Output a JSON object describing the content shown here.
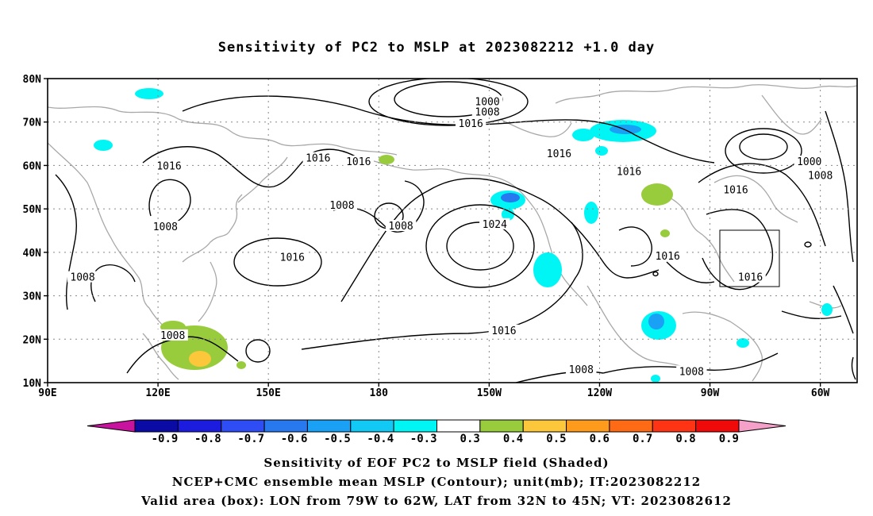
{
  "title": "Sensitivity of PC2 to MSLP at 2023082212 +1.0 day",
  "map": {
    "lat_labels": [
      "80N",
      "70N",
      "60N",
      "50N",
      "40N",
      "30N",
      "20N",
      "10N"
    ],
    "lon_labels": [
      "90E",
      "120E",
      "150E",
      "180",
      "150W",
      "120W",
      "90W",
      "60W"
    ],
    "contour_labels": [
      {
        "text": "1000",
        "lon": -150.5,
        "lat": 74.6
      },
      {
        "text": "1008",
        "lon": -150.5,
        "lat": 72.2
      },
      {
        "text": "1016",
        "lon": -155.0,
        "lat": 69.6
      },
      {
        "text": "1016",
        "lon": -131.0,
        "lat": 62.6
      },
      {
        "text": "1016",
        "lon": -112.0,
        "lat": 58.5
      },
      {
        "text": "1016",
        "lon": -83.0,
        "lat": 54.3
      },
      {
        "text": "1000",
        "lon": -63.0,
        "lat": 60.8
      },
      {
        "text": "1008",
        "lon": -60.0,
        "lat": 57.6
      },
      {
        "text": "1016",
        "lon": 123.0,
        "lat": 59.8
      },
      {
        "text": "1016",
        "lon": 163.5,
        "lat": 61.6
      },
      {
        "text": "1016",
        "lon": 174.5,
        "lat": 60.8
      },
      {
        "text": "1008",
        "lon": 122.0,
        "lat": 45.8
      },
      {
        "text": "1008",
        "lon": 170.0,
        "lat": 50.8
      },
      {
        "text": "1008",
        "lon": 186.0,
        "lat": 46.0
      },
      {
        "text": "1024",
        "lon": -148.5,
        "lat": 46.4
      },
      {
        "text": "1016",
        "lon": 156.5,
        "lat": 38.8
      },
      {
        "text": "1016",
        "lon": -101.5,
        "lat": 39.1
      },
      {
        "text": "1016",
        "lon": -79.0,
        "lat": 34.2
      },
      {
        "text": "1008",
        "lon": 99.5,
        "lat": 34.2
      },
      {
        "text": "1008",
        "lon": 124.0,
        "lat": 20.8
      },
      {
        "text": "1016",
        "lon": -146.0,
        "lat": 21.9
      },
      {
        "text": "1008",
        "lon": -125.0,
        "lat": 12.9
      },
      {
        "text": "1008",
        "lon": -95.0,
        "lat": 12.5
      }
    ],
    "box_label": "Valid area (box)"
  },
  "colorbar": {
    "labels": [
      "-0.9",
      "-0.8",
      "-0.7",
      "-0.6",
      "-0.5",
      "-0.4",
      "-0.3",
      "0.3",
      "0.4",
      "0.5",
      "0.6",
      "0.7",
      "0.8",
      "0.9"
    ],
    "colors": [
      "#0a0aa5",
      "#1c1cde",
      "#2e4df5",
      "#2878f0",
      "#1aa0f5",
      "#12c8f5",
      "#00f5f5",
      "#ffffff",
      "#99cc3c",
      "#fcc73a",
      "#ff9b1c",
      "#ff6a14",
      "#ff3414",
      "#f00a0a"
    ],
    "left_end_color": "#c8139e",
    "right_end_color": "#f5a0c8"
  },
  "caption": {
    "line1": "Sensitivity of EOF PC2 to MSLP field (Shaded)",
    "line2": "NCEP+CMC ensemble mean MSLP (Contour); unit(mb); IT:2023082212",
    "line3": "Valid area (box): LON from 79W to 62W, LAT from 32N to 45N; VT: 2023082612"
  }
}
